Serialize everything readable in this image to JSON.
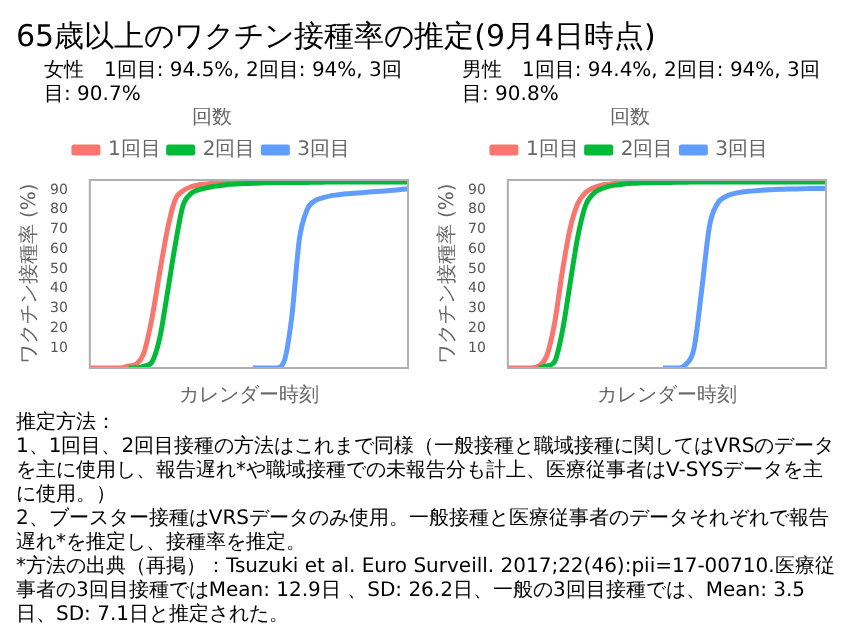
{
  "chart_data": [
    {
      "type": "other",
      "title": "65歳以上のワクチン接種率の推定(9月4日時点)"
    },
    {
      "type": "line",
      "title": "女性　1回目: 94.5%, 2回目: 94%, 3回目: 90.7%",
      "xlabel": "カレンダー時刻",
      "ylabel": "ワクチン接種率 (%)",
      "legend_title": "回数",
      "legend": "top",
      "categories": [
        null,
        null,
        null,
        null,
        null,
        null,
        null,
        null,
        null,
        null,
        null,
        null,
        null,
        null,
        null,
        null,
        null,
        null,
        null,
        null,
        null,
        null,
        null,
        null,
        null,
        null,
        null,
        null,
        null,
        null,
        null,
        null,
        null,
        null,
        null,
        null,
        null,
        null,
        null,
        null,
        null,
        null
      ],
      "ylim": [
        0,
        95
      ],
      "yticks": [
        10,
        20,
        30,
        40,
        50,
        60,
        70,
        80,
        90
      ],
      "series": [
        {
          "name": "1回目",
          "color": "#f8766d",
          "values": [
            0,
            0,
            0,
            0,
            0,
            1,
            2,
            8,
            25,
            48,
            70,
            85,
            89.5,
            91.5,
            92.5,
            93,
            93.5,
            93.8,
            94,
            94.1,
            94.2,
            null,
            null,
            null,
            null,
            null,
            null,
            null,
            null,
            null,
            null,
            null,
            null,
            null,
            null,
            null,
            null,
            null,
            null,
            null,
            null,
            null
          ]
        },
        {
          "name": "2回目",
          "color": "#00ba38",
          "values": [
            null,
            null,
            null,
            null,
            null,
            0,
            0,
            1,
            3,
            15,
            38,
            62,
            82,
            88,
            90,
            91,
            91.8,
            92.3,
            92.8,
            93,
            93.2,
            93.3,
            93.5,
            93.6,
            93.7,
            93.7,
            93.8,
            93.8,
            93.8,
            93.9,
            93.9,
            94,
            94,
            94,
            94,
            94,
            94,
            94,
            94,
            94,
            94,
            94
          ]
        },
        {
          "name": "3回目",
          "color": "#619cff",
          "values": [
            null,
            null,
            null,
            null,
            null,
            null,
            null,
            null,
            null,
            null,
            null,
            null,
            null,
            null,
            null,
            null,
            null,
            null,
            null,
            null,
            null,
            0,
            0,
            0,
            0,
            3,
            25,
            65,
            80,
            84.5,
            86,
            87,
            87.5,
            88,
            88.3,
            88.6,
            88.9,
            89.2,
            89.5,
            89.8,
            90.2,
            90.5
          ]
        }
      ]
    },
    {
      "type": "line",
      "title": "男性　1回目: 94.4%, 2回目: 94%, 3回目: 90.8%",
      "xlabel": "カレンダー時刻",
      "ylabel": "ワクチン接種率 (%)",
      "legend_title": "回数",
      "legend": "top",
      "categories": [
        null,
        null,
        null,
        null,
        null,
        null,
        null,
        null,
        null,
        null,
        null,
        null,
        null,
        null,
        null,
        null,
        null,
        null,
        null,
        null,
        null,
        null,
        null,
        null,
        null,
        null,
        null,
        null,
        null,
        null,
        null,
        null,
        null,
        null,
        null,
        null,
        null,
        null,
        null,
        null,
        null,
        null
      ],
      "ylim": [
        0,
        95
      ],
      "yticks": [
        10,
        20,
        30,
        40,
        50,
        60,
        70,
        80,
        90
      ],
      "series": [
        {
          "name": "1回目",
          "color": "#f8766d",
          "values": [
            0,
            0,
            0,
            0,
            1,
            6,
            22,
            48,
            70,
            83,
            88.5,
            91,
            92.3,
            92.9,
            93.3,
            93.6,
            93.8,
            null,
            null,
            null,
            null,
            null,
            null,
            null,
            null,
            null,
            null,
            null,
            null,
            null,
            null,
            null,
            null,
            null,
            null,
            null,
            null,
            null,
            null,
            null,
            null,
            null
          ]
        },
        {
          "name": "2回目",
          "color": "#00ba38",
          "values": [
            null,
            null,
            null,
            null,
            0,
            1,
            3,
            18,
            42,
            66,
            82,
            88,
            90.5,
            91.8,
            92.5,
            93,
            93.3,
            93.5,
            93.6,
            93.7,
            93.8,
            93.8,
            93.9,
            93.9,
            94,
            94,
            94,
            94,
            94,
            94,
            94,
            94,
            94,
            94,
            94,
            94,
            94,
            94,
            94,
            94,
            94,
            94
          ]
        },
        {
          "name": "3回目",
          "color": "#619cff",
          "values": [
            null,
            null,
            null,
            null,
            null,
            null,
            null,
            null,
            null,
            null,
            null,
            null,
            null,
            null,
            null,
            null,
            null,
            null,
            null,
            null,
            0,
            0,
            0,
            2,
            10,
            40,
            72,
            83,
            86.5,
            88,
            88.8,
            89.3,
            89.6,
            89.9,
            90.1,
            90.3,
            90.4,
            90.5,
            90.6,
            90.7,
            90.7,
            90.8
          ]
        }
      ]
    },
    {
      "type": "other",
      "annotations": [
        "推定方法：",
        "1、1回目、2回目接種の方法はこれまで同様（一般接種と職域接種に関してはVRSのデータを主に使用し、報告遅れ*や職域接種での未報告分も計上、医療従事者はV-SYSデータを主に使用。）",
        "2、ブースター接種はVRSデータのみ使用。一般接種と医療従事者のデータそれぞれで報告遅れ*を推定し、接種率を推定。",
        "*方法の出典（再掲）：Tsuzuki et al. Euro Surveill. 2017;22(46):pii=17-00710.医療従事者の3回目接種ではMean: 12.9日 、SD: 26.2日、一般の3回目接種では、Mean: 3.5日、SD: 7.1日と推定された。"
      ]
    }
  ]
}
